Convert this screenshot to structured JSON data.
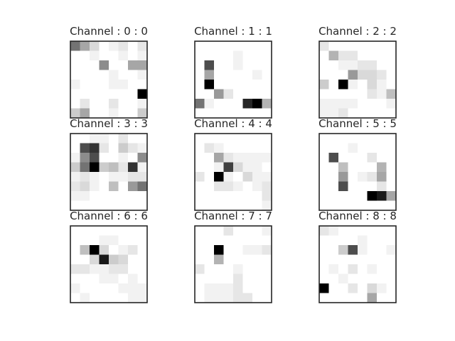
{
  "chart_data": [
    {
      "type": "heatmap",
      "title": "Channel : 0 : 0",
      "grid": false,
      "colormap": "greys",
      "value_range": [
        0,
        1
      ],
      "values": [
        [
          0.55,
          0.35,
          0.15,
          0.0,
          0.05,
          0.1,
          0.0,
          0.1
        ],
        [
          0.0,
          0.0,
          0.05,
          0.0,
          0.0,
          0.05,
          0.0,
          0.05
        ],
        [
          0.0,
          0.0,
          0.0,
          0.45,
          0.0,
          0.0,
          0.35,
          0.35
        ],
        [
          0.0,
          0.0,
          0.0,
          0.0,
          0.05,
          0.0,
          0.0,
          0.05
        ],
        [
          0.05,
          0.0,
          0.0,
          0.0,
          0.05,
          0.05,
          0.0,
          0.0
        ],
        [
          0.0,
          0.0,
          0.0,
          0.0,
          0.0,
          0.0,
          0.0,
          1.0
        ],
        [
          0.0,
          0.1,
          0.0,
          0.0,
          0.1,
          0.0,
          0.0,
          0.05
        ],
        [
          0.2,
          0.35,
          0.0,
          0.0,
          0.05,
          0.0,
          0.0,
          0.2
        ]
      ]
    },
    {
      "type": "heatmap",
      "title": "Channel : 1 : 1",
      "grid": false,
      "colormap": "greys",
      "value_range": [
        0,
        1
      ],
      "values": [
        [
          0.0,
          0.0,
          0.0,
          0.0,
          0.0,
          0.0,
          0.0,
          0.0
        ],
        [
          0.0,
          0.0,
          0.0,
          0.0,
          0.05,
          0.0,
          0.0,
          0.0
        ],
        [
          0.0,
          0.7,
          0.0,
          0.0,
          0.05,
          0.0,
          0.0,
          0.0
        ],
        [
          0.0,
          0.35,
          0.0,
          0.0,
          0.0,
          0.0,
          0.05,
          0.0
        ],
        [
          0.0,
          1.0,
          0.0,
          0.0,
          0.0,
          0.0,
          0.0,
          0.0
        ],
        [
          0.0,
          0.0,
          0.4,
          0.1,
          0.0,
          0.0,
          0.0,
          0.0
        ],
        [
          0.55,
          0.05,
          0.0,
          0.0,
          0.0,
          0.85,
          1.0,
          0.3
        ],
        [
          0.0,
          0.0,
          0.0,
          0.0,
          0.0,
          0.0,
          0.0,
          0.0
        ]
      ]
    },
    {
      "type": "heatmap",
      "title": "Channel : 2 : 2",
      "grid": false,
      "colormap": "greys",
      "value_range": [
        0,
        1
      ],
      "values": [
        [
          0.1,
          0.0,
          0.0,
          0.0,
          0.0,
          0.0,
          0.0,
          0.0
        ],
        [
          0.0,
          0.3,
          0.1,
          0.1,
          0.0,
          0.0,
          0.0,
          0.0
        ],
        [
          0.0,
          0.0,
          0.05,
          0.05,
          0.1,
          0.1,
          0.0,
          0.0
        ],
        [
          0.0,
          0.0,
          0.0,
          0.4,
          0.15,
          0.15,
          0.1,
          0.0
        ],
        [
          0.2,
          0.0,
          1.0,
          0.05,
          0.0,
          0.15,
          0.05,
          0.0
        ],
        [
          0.0,
          0.0,
          0.0,
          0.0,
          0.0,
          0.1,
          0.05,
          0.25
        ],
        [
          0.05,
          0.05,
          0.05,
          0.05,
          0.0,
          0.0,
          0.0,
          0.05
        ],
        [
          0.05,
          0.05,
          0.1,
          0.0,
          0.0,
          0.0,
          0.0,
          0.0
        ]
      ]
    },
    {
      "type": "heatmap",
      "title": "Channel : 3 : 3",
      "grid": false,
      "colormap": "greys",
      "value_range": [
        0,
        1
      ],
      "values": [
        [
          0.0,
          0.0,
          0.05,
          0.05,
          0.0,
          0.1,
          0.0,
          0.0
        ],
        [
          0.0,
          0.7,
          0.8,
          0.1,
          0.0,
          0.2,
          0.1,
          0.05
        ],
        [
          0.05,
          0.45,
          0.7,
          0.0,
          0.0,
          0.05,
          0.0,
          0.45
        ],
        [
          0.2,
          0.55,
          1.0,
          0.2,
          0.25,
          0.1,
          0.8,
          0.05
        ],
        [
          0.05,
          0.1,
          0.05,
          0.0,
          0.05,
          0.05,
          0.1,
          0.1
        ],
        [
          0.1,
          0.15,
          0.05,
          0.0,
          0.25,
          0.0,
          0.4,
          0.55
        ],
        [
          0.05,
          0.05,
          0.0,
          0.0,
          0.0,
          0.0,
          0.0,
          0.0
        ],
        [
          0.0,
          0.0,
          0.0,
          0.0,
          0.0,
          0.0,
          0.0,
          0.0
        ]
      ]
    },
    {
      "type": "heatmap",
      "title": "Channel : 4 : 4",
      "grid": false,
      "colormap": "greys",
      "value_range": [
        0,
        1
      ],
      "values": [
        [
          0.0,
          0.0,
          0.0,
          0.0,
          0.0,
          0.0,
          0.0,
          0.0
        ],
        [
          0.0,
          0.1,
          0.05,
          0.0,
          0.0,
          0.0,
          0.0,
          0.0
        ],
        [
          0.0,
          0.0,
          0.35,
          0.1,
          0.05,
          0.05,
          0.05,
          0.05
        ],
        [
          0.0,
          0.0,
          0.05,
          0.75,
          0.15,
          0.05,
          0.05,
          0.0
        ],
        [
          0.1,
          0.0,
          1.0,
          0.05,
          0.0,
          0.15,
          0.05,
          0.05
        ],
        [
          0.0,
          0.0,
          0.1,
          0.1,
          0.05,
          0.0,
          0.05,
          0.1
        ],
        [
          0.0,
          0.0,
          0.0,
          0.0,
          0.0,
          0.0,
          0.0,
          0.1
        ],
        [
          0.0,
          0.0,
          0.0,
          0.0,
          0.0,
          0.0,
          0.0,
          0.05
        ]
      ]
    },
    {
      "type": "heatmap",
      "title": "Channel : 5 : 5",
      "grid": false,
      "colormap": "greys",
      "value_range": [
        0,
        1
      ],
      "values": [
        [
          0.0,
          0.0,
          0.0,
          0.0,
          0.0,
          0.0,
          0.0,
          0.0
        ],
        [
          0.0,
          0.0,
          0.0,
          0.05,
          0.0,
          0.0,
          0.0,
          0.0
        ],
        [
          0.0,
          0.7,
          0.0,
          0.0,
          0.0,
          0.1,
          0.0,
          0.0
        ],
        [
          0.0,
          0.0,
          0.25,
          0.0,
          0.0,
          0.0,
          0.3,
          0.0
        ],
        [
          0.0,
          0.0,
          0.4,
          0.0,
          0.05,
          0.1,
          0.35,
          0.0
        ],
        [
          0.0,
          0.0,
          0.7,
          0.0,
          0.0,
          0.0,
          0.1,
          0.0
        ],
        [
          0.0,
          0.0,
          0.0,
          0.0,
          0.0,
          1.0,
          0.9,
          0.35
        ],
        [
          0.0,
          0.0,
          0.0,
          0.0,
          0.0,
          0.0,
          0.0,
          0.0
        ]
      ]
    },
    {
      "type": "heatmap",
      "title": "Channel : 6 : 6",
      "grid": false,
      "colormap": "greys",
      "value_range": [
        0,
        1
      ],
      "values": [
        [
          0.0,
          0.0,
          0.0,
          0.0,
          0.0,
          0.0,
          0.0,
          0.0
        ],
        [
          0.0,
          0.0,
          0.0,
          0.05,
          0.05,
          0.0,
          0.0,
          0.0
        ],
        [
          0.0,
          0.25,
          1.0,
          0.15,
          0.0,
          0.05,
          0.1,
          0.0
        ],
        [
          0.0,
          0.0,
          0.15,
          0.9,
          0.2,
          0.15,
          0.0,
          0.0
        ],
        [
          0.1,
          0.1,
          0.05,
          0.05,
          0.1,
          0.1,
          0.0,
          0.0
        ],
        [
          0.0,
          0.0,
          0.0,
          0.05,
          0.05,
          0.0,
          0.05,
          0.0
        ],
        [
          0.05,
          0.0,
          0.0,
          0.0,
          0.0,
          0.05,
          0.05,
          0.05
        ],
        [
          0.0,
          0.05,
          0.0,
          0.0,
          0.0,
          0.0,
          0.05,
          0.05
        ]
      ]
    },
    {
      "type": "heatmap",
      "title": "Channel : 7 : 7",
      "grid": false,
      "colormap": "greys",
      "value_range": [
        0,
        1
      ],
      "values": [
        [
          0.0,
          0.0,
          0.0,
          0.1,
          0.0,
          0.0,
          0.0,
          0.05
        ],
        [
          0.0,
          0.0,
          0.0,
          0.0,
          0.0,
          0.0,
          0.0,
          0.0
        ],
        [
          0.0,
          0.0,
          1.0,
          0.0,
          0.0,
          0.05,
          0.05,
          0.1
        ],
        [
          0.0,
          0.0,
          0.3,
          0.0,
          0.0,
          0.0,
          0.0,
          0.0
        ],
        [
          0.1,
          0.0,
          0.0,
          0.0,
          0.05,
          0.0,
          0.0,
          0.0
        ],
        [
          0.0,
          0.0,
          0.0,
          0.0,
          0.1,
          0.0,
          0.0,
          0.0
        ],
        [
          0.0,
          0.05,
          0.05,
          0.05,
          0.1,
          0.0,
          0.0,
          0.0
        ],
        [
          0.0,
          0.05,
          0.05,
          0.05,
          0.1,
          0.1,
          0.0,
          0.0
        ]
      ]
    },
    {
      "type": "heatmap",
      "title": "Channel : 8 : 8",
      "grid": false,
      "colormap": "greys",
      "value_range": [
        0,
        1
      ],
      "values": [
        [
          0.1,
          0.05,
          0.0,
          0.0,
          0.0,
          0.0,
          0.0,
          0.0
        ],
        [
          0.0,
          0.0,
          0.0,
          0.0,
          0.05,
          0.0,
          0.0,
          0.0
        ],
        [
          0.0,
          0.0,
          0.2,
          0.7,
          0.05,
          0.0,
          0.0,
          0.05
        ],
        [
          0.0,
          0.0,
          0.0,
          0.0,
          0.0,
          0.0,
          0.0,
          0.0
        ],
        [
          0.0,
          0.05,
          0.0,
          0.1,
          0.0,
          0.05,
          0.0,
          0.0
        ],
        [
          0.0,
          0.0,
          0.05,
          0.0,
          0.0,
          0.0,
          0.0,
          0.0
        ],
        [
          1.0,
          0.0,
          0.0,
          0.1,
          0.0,
          0.15,
          0.05,
          0.0
        ],
        [
          0.0,
          0.0,
          0.0,
          0.0,
          0.0,
          0.35,
          0.0,
          0.0
        ]
      ]
    }
  ]
}
